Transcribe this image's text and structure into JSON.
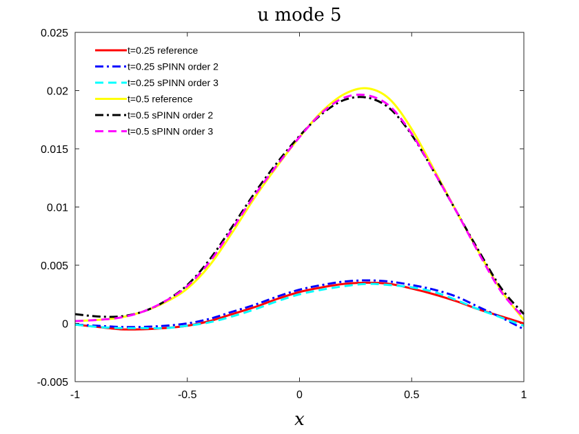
{
  "chart_data": {
    "type": "line",
    "title": "u mode 5",
    "xlabel": "x",
    "ylabel": "",
    "xlim": [
      -1,
      1
    ],
    "ylim": [
      -0.005,
      0.025
    ],
    "xticks": [
      -1,
      -0.5,
      0,
      0.5,
      1
    ],
    "xtick_labels": [
      "-1",
      "-0.5",
      "0",
      "0.5",
      "1"
    ],
    "yticks": [
      -0.005,
      0,
      0.005,
      0.01,
      0.015,
      0.02,
      0.025
    ],
    "ytick_labels": [
      "-0.005",
      "0",
      "0.005",
      "0.01",
      "0.015",
      "0.02",
      "0.025"
    ],
    "grid": false,
    "legend_position": "top-left",
    "x": [
      -1,
      -0.9,
      -0.8,
      -0.7,
      -0.6,
      -0.5,
      -0.4,
      -0.3,
      -0.2,
      -0.1,
      0,
      0.1,
      0.2,
      0.3,
      0.4,
      0.5,
      0.6,
      0.7,
      0.8,
      0.9,
      1
    ],
    "series": [
      {
        "name": "t=0.25 reference",
        "color": "#ff0000",
        "dash": "solid",
        "values": [
          -0.0001,
          -0.0003,
          -0.0005,
          -0.0005,
          -0.0004,
          -0.0002,
          0.0002,
          0.0008,
          0.0014,
          0.0021,
          0.0027,
          0.0031,
          0.0034,
          0.0035,
          0.0034,
          0.003,
          0.0025,
          0.0019,
          0.0012,
          0.0006,
          0.0
        ]
      },
      {
        "name": "t=0.25 sPINN order 2",
        "color": "#0000ff",
        "dash": "dashdot",
        "values": [
          -0.0001,
          -0.0002,
          -0.0003,
          -0.0003,
          -0.0002,
          0.0,
          0.0004,
          0.001,
          0.0016,
          0.0023,
          0.0029,
          0.0033,
          0.0036,
          0.0037,
          0.0036,
          0.0033,
          0.0029,
          0.0023,
          0.0014,
          0.0005,
          -0.0005
        ]
      },
      {
        "name": "t=0.25 sPINN order 3",
        "color": "#00ffff",
        "dash": "dashed",
        "values": [
          -0.0001,
          -0.0003,
          -0.0004,
          -0.0004,
          -0.0004,
          -0.0002,
          0.0001,
          0.0006,
          0.0012,
          0.0019,
          0.0025,
          0.0029,
          0.0032,
          0.0034,
          0.0033,
          0.0031,
          0.0027,
          0.002,
          0.0012,
          0.0005,
          -0.0002
        ]
      },
      {
        "name": "t=0.5 reference",
        "color": "#ffff00",
        "dash": "solid",
        "values": [
          0.0002,
          0.0003,
          0.0005,
          0.001,
          0.0018,
          0.003,
          0.005,
          0.0078,
          0.0108,
          0.0135,
          0.016,
          0.0182,
          0.0197,
          0.0202,
          0.0193,
          0.0167,
          0.0132,
          0.0096,
          0.0061,
          0.0028,
          0.0003
        ]
      },
      {
        "name": "t=0.5 sPINN order 2",
        "color": "#000000",
        "dash": "dashdot",
        "values": [
          0.0008,
          0.0006,
          0.0006,
          0.001,
          0.0019,
          0.0033,
          0.0055,
          0.0083,
          0.0112,
          0.0138,
          0.0161,
          0.018,
          0.0192,
          0.0194,
          0.0185,
          0.0162,
          0.013,
          0.0096,
          0.0062,
          0.003,
          0.0008
        ]
      },
      {
        "name": "t=0.5 sPINN order 3",
        "color": "#ff00ff",
        "dash": "dashed",
        "values": [
          0.0002,
          0.0003,
          0.0005,
          0.001,
          0.0019,
          0.0032,
          0.0053,
          0.0081,
          0.011,
          0.0136,
          0.016,
          0.0181,
          0.0194,
          0.0196,
          0.0187,
          0.0163,
          0.013,
          0.0096,
          0.006,
          0.0027,
          0.0005
        ]
      }
    ]
  }
}
